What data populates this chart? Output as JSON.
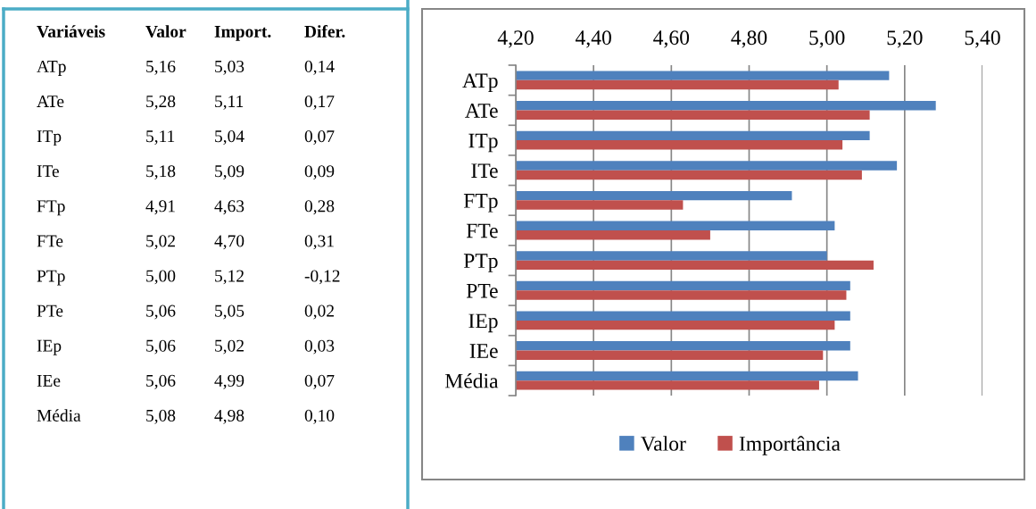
{
  "chart_data": [
    {
      "type": "other",
      "annotations": [
        "Variáveis",
        "Valor",
        "Import.",
        "Difer.",
        "ATp",
        "5,16",
        "5,03",
        "0,14",
        "ATe",
        "5,28",
        "5,11",
        "0,17",
        "ITp",
        "5,11",
        "5,04",
        "0,07",
        "ITe",
        "5,18",
        "5,09",
        "0,09",
        "FTp",
        "4,91",
        "4,63",
        "0,28",
        "FTe",
        "5,02",
        "4,70",
        "0,31",
        "PTp",
        "5,00",
        "5,12",
        "-0,12",
        "PTe",
        "5,06",
        "5,05",
        "0,02",
        "IEp",
        "5,06",
        "5,02",
        "0,03",
        "IEe",
        "5,06",
        "4,99",
        "0,07",
        "Média",
        "5,08",
        "4,98",
        "0,10"
      ]
    },
    {
      "type": "bar",
      "orientation": "horizontal",
      "categories": [
        "ATp",
        "ATe",
        "ITp",
        "ITe",
        "FTp",
        "FTe",
        "PTp",
        "PTe",
        "IEp",
        "IEe",
        "Média"
      ],
      "series": [
        {
          "name": "Valor",
          "color": "#4f81bd",
          "values": [
            5.16,
            5.28,
            5.11,
            5.18,
            4.91,
            5.02,
            5.0,
            5.06,
            5.06,
            5.06,
            5.08
          ]
        },
        {
          "name": "Importância",
          "color": "#c0504d",
          "values": [
            5.03,
            5.11,
            5.04,
            5.09,
            4.63,
            4.7,
            5.12,
            5.05,
            5.02,
            4.99,
            4.98
          ]
        }
      ],
      "xlim": [
        4.2,
        5.4
      ],
      "xticks": [
        {
          "value": 4.2,
          "label": "4,20"
        },
        {
          "value": 4.4,
          "label": "4,40"
        },
        {
          "value": 4.6,
          "label": "4,60"
        },
        {
          "value": 4.8,
          "label": "4,80"
        },
        {
          "value": 5.0,
          "label": "5,00"
        },
        {
          "value": 5.2,
          "label": "5,20"
        },
        {
          "value": 5.4,
          "label": "5,40"
        }
      ],
      "grid": "x",
      "legend": "bottom"
    }
  ]
}
